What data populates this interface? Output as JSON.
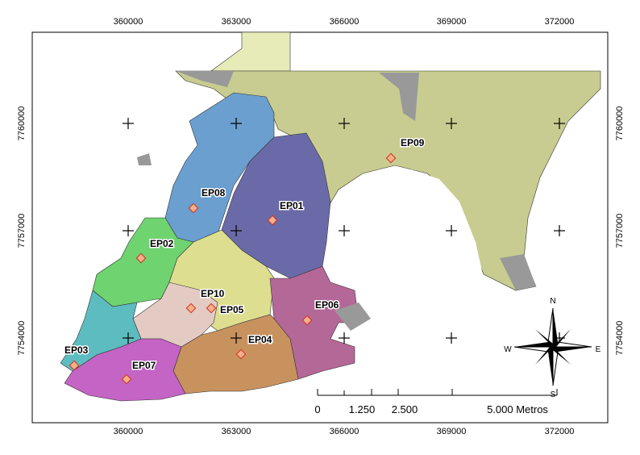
{
  "map": {
    "x_labels": [
      "360000",
      "363000",
      "366000",
      "369000",
      "372000"
    ],
    "y_labels": [
      "7760000",
      "7757000",
      "7754000"
    ],
    "stations": [
      "EP01",
      "EP02",
      "EP03",
      "EP04",
      "EP05",
      "EP06",
      "EP07",
      "EP08",
      "EP09",
      "EP10"
    ],
    "compass": {
      "north": "N",
      "south": "S",
      "east": "E",
      "west": "W"
    },
    "scale_bar": [
      "0",
      "1.250",
      "2.500",
      "5.000 Metros"
    ]
  }
}
